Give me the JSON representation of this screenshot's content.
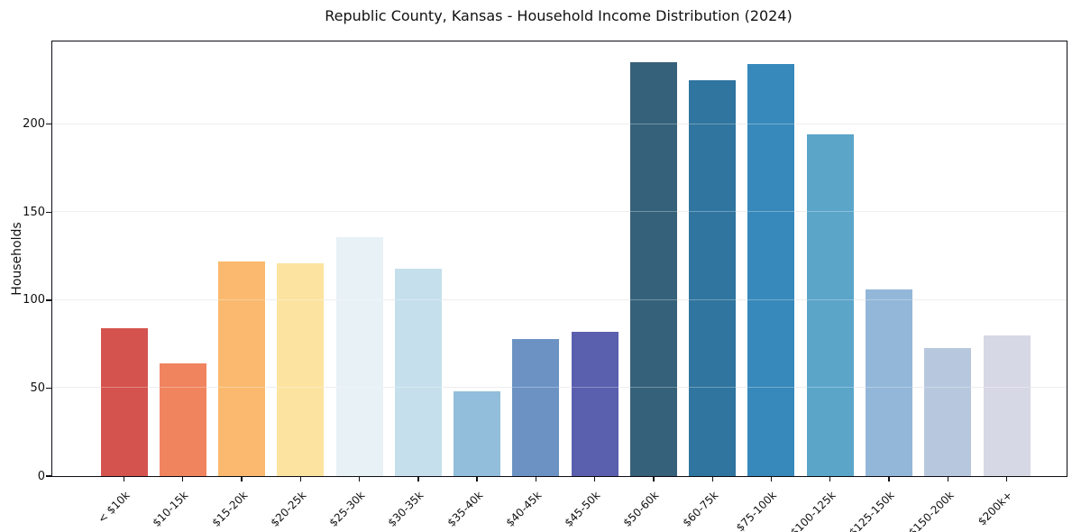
{
  "chart_data": {
    "type": "bar",
    "title": "Republic County, Kansas - Household Income Distribution (2024)",
    "xlabel": "",
    "ylabel": "Households",
    "categories": [
      "< $10k",
      "$10-15k",
      "$15-20k",
      "$20-25k",
      "$25-30k",
      "$30-35k",
      "$35-40k",
      "$40-45k",
      "$45-50k",
      "$50-60k",
      "$60-75k",
      "$75-100k",
      "$100-125k",
      "$125-150k",
      "$150-200k",
      "$200k+"
    ],
    "values": [
      84,
      64,
      122,
      121,
      136,
      118,
      48,
      78,
      82,
      235,
      225,
      234,
      194,
      106,
      73,
      80
    ],
    "colors": [
      "#d4534e",
      "#f0845f",
      "#fab96e",
      "#fce3a0",
      "#e7f1f6",
      "#c5e0ec",
      "#92bedb",
      "#6c92c4",
      "#5a5fae",
      "#36617a",
      "#2f759f",
      "#3789bb",
      "#5ba5c9",
      "#93b7d8",
      "#b7c8de",
      "#d7d8e5"
    ],
    "yticks": [
      0,
      50,
      100,
      150,
      200
    ],
    "ylim": [
      0,
      247
    ],
    "grid": "horizontal",
    "legend": "none",
    "background": "#ffffff",
    "spine_color": "#0d0d14",
    "gridline_color": "#e7e7e7",
    "text_color": "#111111"
  }
}
